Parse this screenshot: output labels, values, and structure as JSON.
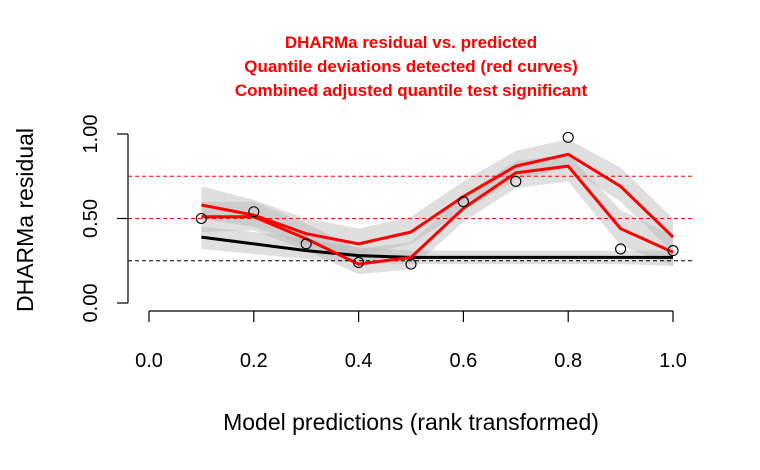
{
  "chart_data": {
    "type": "scatter",
    "title_lines": [
      "DHARMa residual vs. predicted",
      "Quantile deviations detected (red curves)",
      "Combined adjusted quantile test significant"
    ],
    "xlabel": "Model predictions (rank transformed)",
    "ylabel": "DHARMa residual",
    "xlim": [
      0,
      1
    ],
    "ylim": [
      0,
      1
    ],
    "x_ticks": [
      "0.0",
      "0.2",
      "0.4",
      "0.6",
      "0.8",
      "1.0"
    ],
    "x_tick_values": [
      0.0,
      0.2,
      0.4,
      0.6,
      0.8,
      1.0
    ],
    "y_ticks": [
      "0.00",
      "0.50",
      "1.00"
    ],
    "y_tick_values": [
      0.0,
      0.5,
      1.0
    ],
    "reference_lines": [
      {
        "y": 0.25,
        "color": "#000000",
        "style": "dashed"
      },
      {
        "y": 0.5,
        "color": "#ff0000",
        "style": "dashed"
      },
      {
        "y": 0.75,
        "color": "#ff0000",
        "style": "dashed"
      }
    ],
    "points": {
      "x": [
        0.1,
        0.2,
        0.3,
        0.4,
        0.5,
        0.6,
        0.7,
        0.8,
        0.9,
        1.0
      ],
      "y": [
        0.5,
        0.54,
        0.35,
        0.24,
        0.23,
        0.6,
        0.72,
        0.98,
        0.32,
        0.31
      ]
    },
    "series": [
      {
        "quantile": 0.25,
        "color": "#000000",
        "x": [
          0.1,
          0.2,
          0.3,
          0.4,
          0.5,
          0.6,
          0.7,
          0.8,
          0.9,
          1.0
        ],
        "y": [
          0.39,
          0.35,
          0.31,
          0.28,
          0.27,
          0.27,
          0.27,
          0.27,
          0.27,
          0.27
        ],
        "band_upper": [
          0.45,
          0.42,
          0.38,
          0.33,
          0.31,
          0.31,
          0.31,
          0.31,
          0.31,
          0.31
        ],
        "band_lower": [
          0.32,
          0.29,
          0.26,
          0.24,
          0.23,
          0.23,
          0.23,
          0.23,
          0.23,
          0.22
        ]
      },
      {
        "quantile": 0.5,
        "color": "#ff0000",
        "x": [
          0.1,
          0.2,
          0.3,
          0.4,
          0.5,
          0.6,
          0.7,
          0.8,
          0.9,
          1.0
        ],
        "y": [
          0.51,
          0.51,
          0.38,
          0.23,
          0.27,
          0.56,
          0.77,
          0.81,
          0.44,
          0.3
        ],
        "band_upper": [
          0.6,
          0.6,
          0.47,
          0.32,
          0.36,
          0.64,
          0.84,
          0.88,
          0.55,
          0.4
        ],
        "band_lower": [
          0.42,
          0.43,
          0.31,
          0.17,
          0.2,
          0.48,
          0.68,
          0.72,
          0.34,
          0.22
        ]
      },
      {
        "quantile": 0.75,
        "color": "#ff0000",
        "x": [
          0.1,
          0.2,
          0.3,
          0.4,
          0.5,
          0.6,
          0.7,
          0.8,
          0.9,
          1.0
        ],
        "y": [
          0.58,
          0.52,
          0.41,
          0.35,
          0.42,
          0.63,
          0.81,
          0.88,
          0.69,
          0.39
        ],
        "band_upper": [
          0.69,
          0.61,
          0.5,
          0.44,
          0.51,
          0.72,
          0.9,
          0.97,
          0.8,
          0.5
        ],
        "band_lower": [
          0.5,
          0.45,
          0.34,
          0.28,
          0.35,
          0.55,
          0.73,
          0.8,
          0.6,
          0.3
        ]
      }
    ]
  }
}
